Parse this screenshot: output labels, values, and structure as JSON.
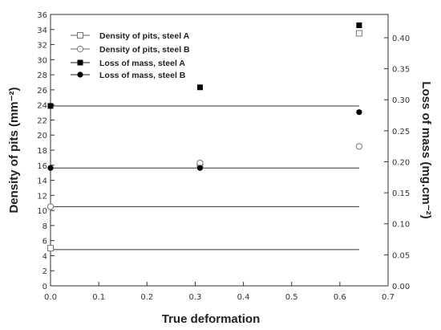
{
  "chart_data": {
    "type": "line",
    "xlabel": "True deformation",
    "ylabel_left": "Density of pits (mm⁻²)",
    "ylabel_right": "Loss of mass (mg.cm⁻²)",
    "xlim": [
      0.0,
      0.7
    ],
    "ylim_left": [
      0,
      36
    ],
    "ylim_right": [
      0.0,
      0.4375
    ],
    "x_ticks": [
      "0.0",
      "0.1",
      "0.2",
      "0.3",
      "0.4",
      "0.5",
      "0.6",
      "0.7"
    ],
    "y_left_ticks": [
      "0",
      "2",
      "4",
      "6",
      "8",
      "10",
      "12",
      "14",
      "16",
      "18",
      "20",
      "22",
      "24",
      "26",
      "28",
      "30",
      "32",
      "34",
      "36"
    ],
    "y_right_ticks": [
      "0.00",
      "0.05",
      "0.10",
      "0.15",
      "0.20",
      "0.25",
      "0.30",
      "0.35",
      "0.40"
    ],
    "grid": false,
    "legend_position": "top-left",
    "series": [
      {
        "name": "Density of pits, steel A",
        "axis": "left",
        "marker": "open-square",
        "x": [
          0.0,
          0.31,
          0.64
        ],
        "y": [
          5.0,
          16.1,
          33.5
        ],
        "curve": [
          4.8,
          0.0,
          0.0
        ]
      },
      {
        "name": "Density of pits, steel B",
        "axis": "left",
        "marker": "open-circle",
        "x": [
          0.0,
          0.31,
          0.64
        ],
        "y": [
          10.5,
          16.3,
          18.5
        ],
        "curve": [
          10.5,
          0.0,
          0.0
        ]
      },
      {
        "name": "Loss of mass, steel A",
        "axis": "right",
        "marker": "filled-square",
        "x": [
          0.0,
          0.31,
          0.64
        ],
        "y": [
          0.29,
          0.32,
          0.42
        ],
        "curve": [
          0.29,
          0.0,
          0.0
        ]
      },
      {
        "name": "Loss of mass, steel B",
        "axis": "right",
        "marker": "filled-circle",
        "x": [
          0.0,
          0.31,
          0.64
        ],
        "y": [
          0.19,
          0.19,
          0.28
        ],
        "curve": [
          0.19,
          0.0,
          0.0
        ]
      }
    ]
  }
}
